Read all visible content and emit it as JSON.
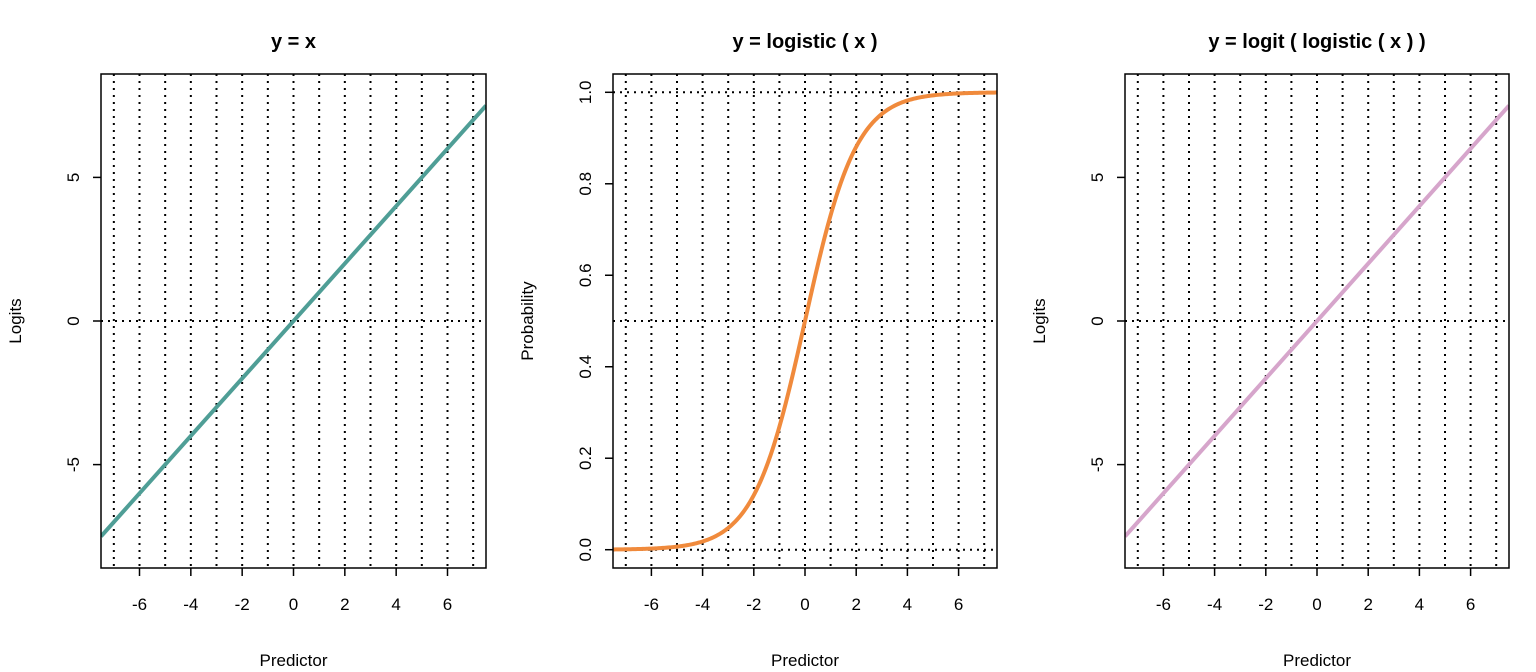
{
  "chart_data": [
    {
      "type": "line",
      "title": "y = x",
      "xlabel": "Predictor",
      "ylabel": "Logits",
      "xlim": [
        -7.5,
        7.5
      ],
      "ylim": [
        -8.6,
        8.6
      ],
      "xticks": [
        -6,
        -4,
        -2,
        0,
        2,
        4,
        6
      ],
      "yticks": [
        -5,
        0,
        5
      ],
      "ytick_rotated": true,
      "vgrid": [
        -7,
        -6,
        -5,
        -4,
        -3,
        -2,
        -1,
        0,
        1,
        2,
        3,
        4,
        5,
        6,
        7
      ],
      "hgrid": [
        0
      ],
      "grid_style": "dotted",
      "series": [
        {
          "function": "identity",
          "color": "#4f9e96",
          "x": [
            -7.5,
            7.5
          ],
          "y": [
            -7.5,
            7.5
          ]
        }
      ]
    },
    {
      "type": "line",
      "title": "y = logistic ( x )",
      "xlabel": "Predictor",
      "ylabel": "Probability",
      "xlim": [
        -7.5,
        7.5
      ],
      "ylim": [
        -0.04,
        1.04
      ],
      "xticks": [
        -6,
        -4,
        -2,
        0,
        2,
        4,
        6
      ],
      "yticks": [
        0.0,
        0.2,
        0.4,
        0.6,
        0.8,
        1.0
      ],
      "ytick_labels": [
        "0.0",
        "0.2",
        "0.4",
        "0.6",
        "0.8",
        "1.0"
      ],
      "ytick_rotated": true,
      "vgrid": [
        -7,
        -6,
        -5,
        -4,
        -3,
        -2,
        -1,
        0,
        1,
        2,
        3,
        4,
        5,
        6,
        7
      ],
      "hgrid": [
        0,
        0.5,
        1
      ],
      "grid_style": "dotted",
      "series": [
        {
          "function": "logistic",
          "color": "#f08a3c",
          "x": [
            -7.5,
            -6,
            -5,
            -4,
            -3,
            -2,
            -1,
            0,
            1,
            2,
            3,
            4,
            5,
            6,
            7.5
          ],
          "y": [
            0.001,
            0.002,
            0.007,
            0.018,
            0.047,
            0.119,
            0.269,
            0.5,
            0.731,
            0.881,
            0.953,
            0.982,
            0.993,
            0.998,
            0.999
          ]
        }
      ]
    },
    {
      "type": "line",
      "title": "y = logit ( logistic ( x ) )",
      "xlabel": "Predictor",
      "ylabel": "Logits",
      "xlim": [
        -7.5,
        7.5
      ],
      "ylim": [
        -8.6,
        8.6
      ],
      "xticks": [
        -6,
        -4,
        -2,
        0,
        2,
        4,
        6
      ],
      "yticks": [
        -5,
        0,
        5
      ],
      "ytick_rotated": true,
      "vgrid": [
        -7,
        -6,
        -5,
        -4,
        -3,
        -2,
        -1,
        0,
        1,
        2,
        3,
        4,
        5,
        6,
        7
      ],
      "hgrid": [
        0
      ],
      "grid_style": "dotted",
      "series": [
        {
          "function": "identity",
          "color": "#d6a5cb",
          "x": [
            -7.5,
            7.5
          ],
          "y": [
            -7.5,
            7.5
          ]
        }
      ]
    }
  ]
}
